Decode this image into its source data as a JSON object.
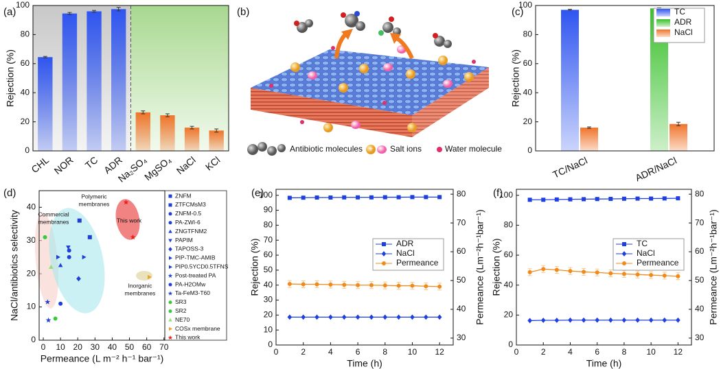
{
  "chart_data": [
    {
      "type": "bar",
      "label": "(a)",
      "ylabel": "Rejection (%)",
      "categories": [
        "CHL",
        "NOR",
        "TC",
        "ADR",
        "Na₂SO₄",
        "MgSO₄",
        "NaCl",
        "KCl"
      ],
      "values": [
        64.5,
        94.5,
        96,
        97.5,
        26.5,
        24.5,
        16,
        14
      ],
      "errors": [
        0.5,
        0.7,
        0.6,
        1.2,
        1,
        1,
        0.9,
        1.1
      ],
      "colors": [
        "#2f55f0",
        "#2f55f0",
        "#2f55f0",
        "#2f55f0",
        "#f0742a",
        "#f0742a",
        "#f0742a",
        "#f0742a"
      ],
      "ylim": [
        0,
        100
      ],
      "yticks": [
        0,
        20,
        40,
        60,
        80,
        100
      ]
    },
    {
      "type": "grouped-bar",
      "label": "(c)",
      "ylabel": "Rejection (%)",
      "categories": [
        "TC/NaCl",
        "ADR/NaCl"
      ],
      "series": [
        {
          "name": "TC",
          "color": "#2f55f0",
          "values": [
            97,
            null
          ],
          "errors": [
            0.4,
            null
          ]
        },
        {
          "name": "ADR",
          "color": "#38c02a",
          "values": [
            null,
            98
          ],
          "errors": [
            null,
            0.4
          ]
        },
        {
          "name": "NaCl",
          "color": "#f0742a",
          "values": [
            16,
            18.5
          ],
          "errors": [
            0.5,
            1.2
          ]
        }
      ],
      "ylim": [
        0,
        100
      ],
      "yticks": [
        0,
        20,
        40,
        60,
        80,
        100
      ],
      "legend": "upper right"
    },
    {
      "type": "scatter",
      "label": "(d)",
      "xlabel": "Permeance (L m⁻² h⁻¹ bar⁻¹)",
      "ylabel": "NaCl/antibiotics selectivity",
      "xlim": [
        -2.4,
        70.5
      ],
      "xticks": [
        0,
        10,
        20,
        30,
        40,
        50,
        60,
        70
      ],
      "ylim": [
        0,
        45
      ],
      "yticks": [
        0,
        10,
        20,
        30,
        40
      ],
      "series": [
        {
          "name": "ZNFM",
          "color": "#1f3fd6",
          "marker": "square",
          "x": [
            21
          ],
          "values": [
            36
          ]
        },
        {
          "name": "ZTFCMsM3",
          "color": "#1f3fd6",
          "marker": "square",
          "x": [
            27
          ],
          "values": [
            31
          ]
        },
        {
          "name": "ZNFM-0.5",
          "color": "#1f3fd6",
          "marker": "circle",
          "x": [
            15
          ],
          "values": [
            27
          ]
        },
        {
          "name": "PA-ZWI-6",
          "color": "#1f3fd6",
          "marker": "circle",
          "x": [
            15
          ],
          "values": [
            25
          ]
        },
        {
          "name": "ZNGTFNM2",
          "color": "#1f3fd6",
          "marker": "triangle",
          "x": [
            10
          ],
          "values": [
            22.5
          ]
        },
        {
          "name": "PAPIM",
          "color": "#1f3fd6",
          "marker": "triangle-down",
          "x": [
            14.5
          ],
          "values": [
            28
          ]
        },
        {
          "name": "TAPOSS-3",
          "color": "#1f3fd6",
          "marker": "diamond",
          "x": [
            20.5
          ],
          "values": [
            18.5
          ]
        },
        {
          "name": "PIP-TMC-AMIB",
          "color": "#1f3fd6",
          "marker": "triangle-right",
          "x": [
            23.5
          ],
          "values": [
            25
          ]
        },
        {
          "name": "PIP0.5YCD0.5TFNS",
          "color": "#1f3fd6",
          "marker": "triangle-right",
          "x": [
            8.5
          ],
          "values": [
            25
          ]
        },
        {
          "name": "Post-treated PA",
          "color": "#1f3fd6",
          "marker": "star",
          "x": [
            2.5
          ],
          "values": [
            11.5
          ]
        },
        {
          "name": "PA-H2OMw",
          "color": "#1f3fd6",
          "marker": "circle",
          "x": [
            10
          ],
          "values": [
            11
          ]
        },
        {
          "name": "Ta-FeM3-T60",
          "color": "#1f3fd6",
          "marker": "star",
          "x": [
            3
          ],
          "values": [
            6
          ]
        },
        {
          "name": "SR3",
          "color": "#3cc83c",
          "marker": "circle",
          "x": [
            1
          ],
          "values": [
            31
          ]
        },
        {
          "name": "SR2",
          "color": "#3cc83c",
          "marker": "circle",
          "x": [
            7
          ],
          "values": [
            6.5
          ]
        },
        {
          "name": "NE70",
          "color": "#8fe07a",
          "marker": "triangle",
          "x": [
            4.5
          ],
          "values": [
            22
          ]
        },
        {
          "name": "COSx membrane",
          "color": "#f0a030",
          "marker": "triangle-right",
          "x": [
            61.5
          ],
          "values": [
            19
          ]
        },
        {
          "name": "This work",
          "color": "#e8201a",
          "marker": "star",
          "x": [
            48,
            52
          ],
          "values": [
            41.5,
            31
          ]
        }
      ],
      "annotations": [
        {
          "lines": [
            "Commercial",
            "membranes"
          ]
        },
        {
          "lines": [
            "Polymeric",
            "membranes"
          ]
        },
        {
          "lines": [
            "This work"
          ]
        },
        {
          "lines": [
            "Inorganic",
            "membranes"
          ]
        }
      ]
    },
    {
      "type": "line",
      "label": "(e)",
      "xlabel": "Time (h)",
      "ylabel": "Rejection (%)",
      "y2label": "Permeance (Lm⁻²h⁻¹bar⁻¹)",
      "xlim": [
        0,
        13
      ],
      "xticks": [
        0,
        2,
        4,
        6,
        8,
        10,
        12
      ],
      "ylim": [
        0,
        104
      ],
      "yticks": [
        0,
        10,
        20,
        30,
        40,
        50,
        60,
        70,
        80,
        90,
        100
      ],
      "y2lim": [
        27.6,
        81.7
      ],
      "y2ticks": [
        30,
        40,
        50,
        60,
        70,
        80
      ],
      "x": [
        1,
        2,
        3,
        4,
        5,
        6,
        7,
        8,
        9,
        10,
        11,
        12
      ],
      "series": [
        {
          "name": "ADR",
          "color": "#1f3fe0",
          "marker": "square",
          "values": [
            98.3,
            98.4,
            98.5,
            98.5,
            98.6,
            98.6,
            98.6,
            98.7,
            98.7,
            98.8,
            98.8,
            98.8
          ]
        },
        {
          "name": "NaCl",
          "color": "#1f3fe0",
          "marker": "diamond",
          "values": [
            18.6,
            18.6,
            18.6,
            18.6,
            18.6,
            18.6,
            18.6,
            18.6,
            18.6,
            18.6,
            18.6,
            18.6
          ]
        },
        {
          "name": "Permeance",
          "color": "#f08a1a",
          "marker": "circle",
          "axis": "y2",
          "values": [
            48.8,
            48.7,
            48.7,
            48.6,
            48.5,
            48.4,
            48.4,
            48.3,
            48.2,
            48.2,
            48,
            47.9
          ],
          "errors": [
            1.2,
            1.2,
            1.2,
            1.2,
            1.2,
            1.2,
            1.2,
            1.2,
            1.2,
            1.2,
            1.2,
            1.2
          ]
        }
      ]
    },
    {
      "type": "line",
      "label": "(f)",
      "xlabel": "Time (h)",
      "ylabel": "Rejection (%)",
      "y2label": "Permeance (Lm⁻²h⁻¹bar⁻¹)",
      "xlim": [
        0,
        13
      ],
      "xticks": [
        0,
        2,
        4,
        6,
        8,
        10,
        12
      ],
      "ylim": [
        0,
        104
      ],
      "yticks": [
        0,
        20,
        40,
        60,
        80,
        100
      ],
      "y2lim": [
        27.6,
        81.7
      ],
      "y2ticks": [
        30,
        40,
        50,
        60,
        70,
        80
      ],
      "x": [
        1,
        2,
        3,
        4,
        5,
        6,
        7,
        8,
        9,
        10,
        11,
        12
      ],
      "series": [
        {
          "name": "TC",
          "color": "#1f3fe0",
          "marker": "square",
          "values": [
            97,
            97,
            97.2,
            97.3,
            97.4,
            97.5,
            97.6,
            97.7,
            97.8,
            97.8,
            97.9,
            98
          ]
        },
        {
          "name": "NaCl",
          "color": "#1f3fe0",
          "marker": "diamond",
          "values": [
            16.3,
            16.5,
            16.5,
            16.6,
            16.6,
            16.6,
            16.6,
            16.6,
            16.6,
            16.6,
            16.6,
            16.6
          ]
        },
        {
          "name": "Permeance",
          "color": "#f08a1a",
          "marker": "circle",
          "axis": "y2",
          "values": [
            52.9,
            54,
            53.7,
            53.3,
            53,
            52.8,
            52.5,
            52.3,
            52.1,
            51.9,
            51.7,
            51.5
          ],
          "errors": [
            1.2,
            1.2,
            1.2,
            1.2,
            1.2,
            1.2,
            1.2,
            1.2,
            1.2,
            1.2,
            1.2,
            1.2
          ]
        }
      ]
    }
  ],
  "diagram": {
    "label": "(b)",
    "legend": [
      "Antibiotic molecules",
      "Salt ions",
      "Water molecule"
    ]
  }
}
